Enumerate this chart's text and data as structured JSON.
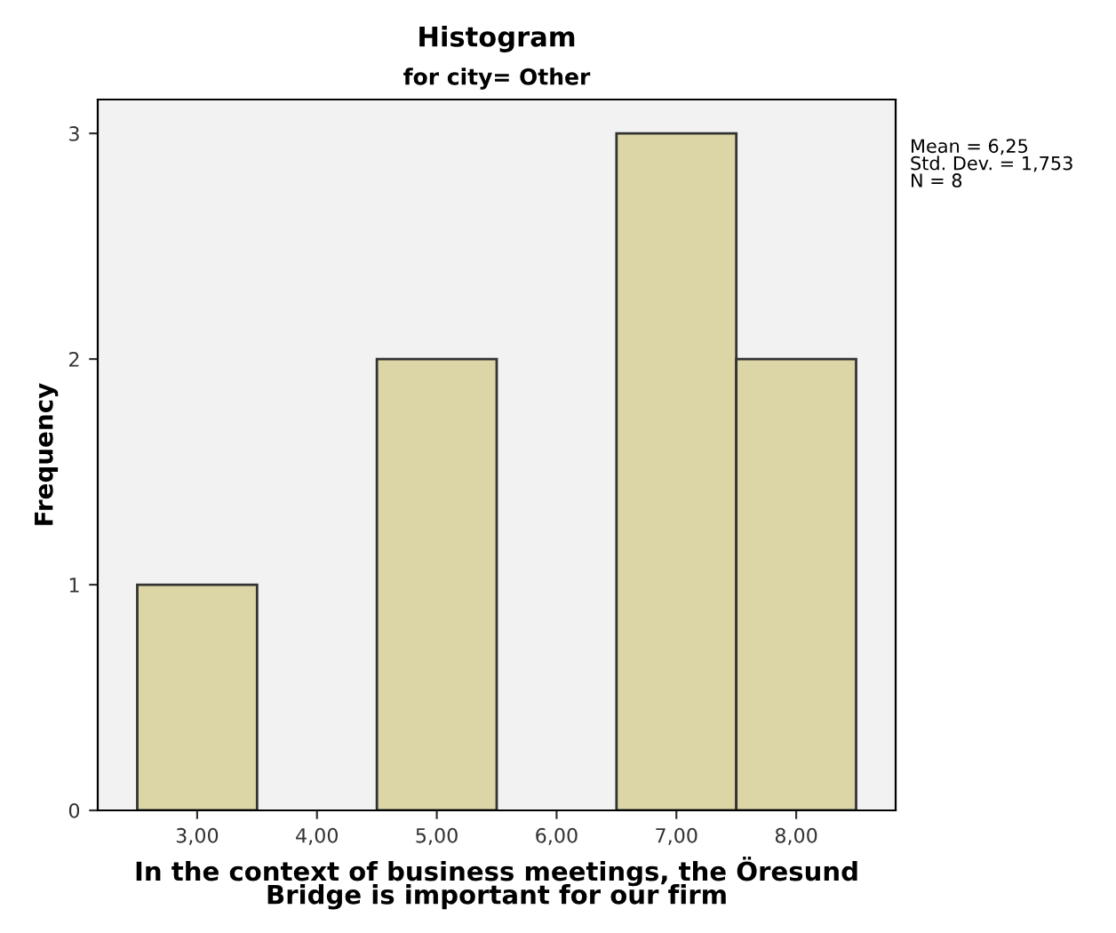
{
  "chart_data": {
    "type": "histogram",
    "title": "Histogram",
    "subtitle": "for city= Other",
    "xlabel": "In the context of business meetings, the Öresund\nBridge is important for our firm",
    "ylabel": "Frequency",
    "bins": [
      2.5,
      3.5,
      4.5,
      5.5,
      6.5,
      7.5,
      8.5
    ],
    "values": [
      1,
      0,
      2,
      0,
      3,
      2
    ],
    "color": "#dcd6a6",
    "xlim": [
      2.17,
      8.83
    ],
    "ylim": [
      0,
      3.15
    ],
    "xticks": [
      {
        "value": 3,
        "label": "3,00"
      },
      {
        "value": 4,
        "label": "4,00"
      },
      {
        "value": 5,
        "label": "5,00"
      },
      {
        "value": 6,
        "label": "6,00"
      },
      {
        "value": 7,
        "label": "7,00"
      },
      {
        "value": 8,
        "label": "8,00"
      }
    ],
    "yticks": [
      0,
      1,
      2,
      3
    ],
    "annotations": [
      "Mean = 6,25\nStd. Dev. = 1,753\nN = 8"
    ],
    "grid": false,
    "legend": false
  }
}
